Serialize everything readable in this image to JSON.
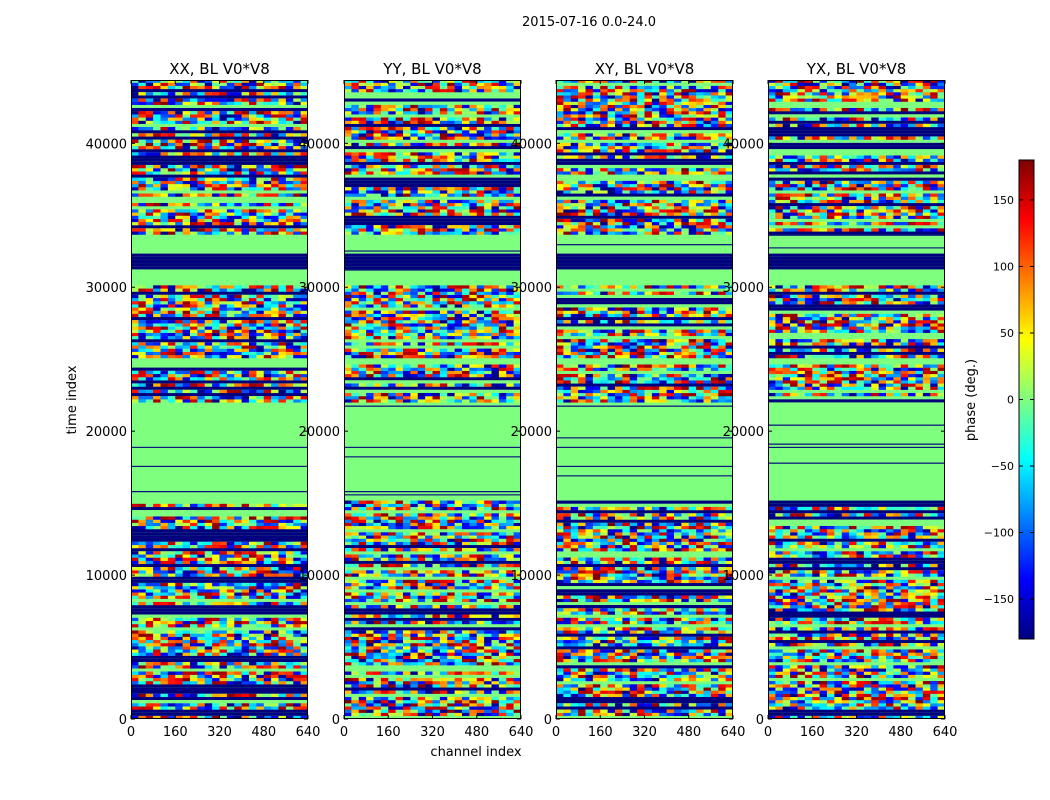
{
  "chart_data": {
    "type": "heatmap",
    "suptitle": "2015-07-16 0.0-24.0",
    "xlabel": "channel index",
    "ylabel": "time index",
    "xlim": [
      0,
      640
    ],
    "ylim": [
      0,
      44400
    ],
    "x_ticks": [
      0,
      160,
      320,
      480,
      640
    ],
    "y_ticks": [
      0,
      10000,
      20000,
      30000,
      40000
    ],
    "panels": [
      {
        "name": "panel-xx",
        "title": "XX, BL V0*V8"
      },
      {
        "name": "panel-yy",
        "title": "YY, BL V0*V8"
      },
      {
        "name": "panel-xy",
        "title": "XY, BL V0*V8"
      },
      {
        "name": "panel-yx",
        "title": "YX, BL V0*V8"
      }
    ],
    "colorbar": {
      "label": "phase (deg.)",
      "min": -180,
      "max": 180,
      "ticks": [
        150,
        100,
        50,
        0,
        -50,
        -100,
        -150
      ],
      "tick_labels": [
        "150",
        "100",
        "50",
        "0",
        "−50",
        "−100",
        "−150"
      ],
      "colormap": "jet",
      "colors": [
        "#00007f",
        "#0000ff",
        "#007fff",
        "#00ffff",
        "#7fff7f",
        "#ffff00",
        "#ff7f00",
        "#ff0000",
        "#7f0000"
      ]
    },
    "uniform_bands": [
      {
        "from": 15000,
        "to": 22000,
        "phase": 0
      },
      {
        "from": 24500,
        "to": 25000,
        "phase": 0
      },
      {
        "from": 30000,
        "to": 31200,
        "phase": 0
      },
      {
        "from": 31200,
        "to": 32200,
        "phase": -180
      },
      {
        "from": 32200,
        "to": 33600,
        "phase": 0
      }
    ]
  },
  "colors": {
    "background": "#ffffff",
    "axis": "#000000",
    "flag_green": "#7fff7f",
    "flag_navy": "#00007f"
  }
}
